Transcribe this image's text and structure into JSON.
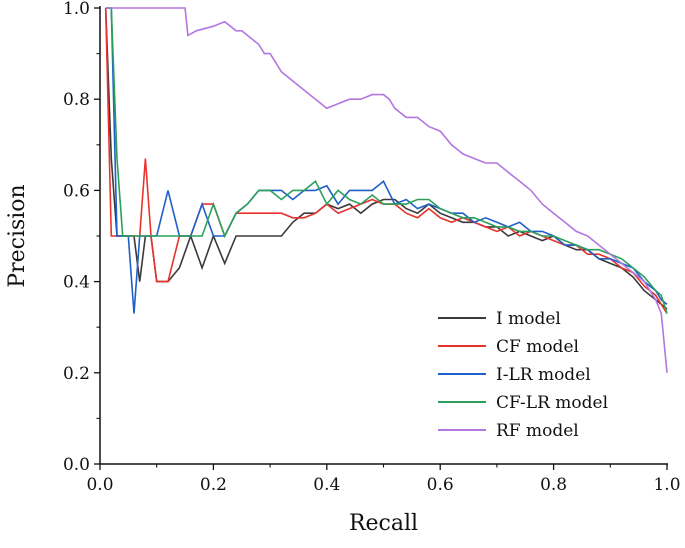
{
  "chart_data": {
    "type": "line",
    "title": "",
    "xlabel": "Recall",
    "ylabel": "Precision",
    "xlim": [
      0.0,
      1.0
    ],
    "ylim": [
      0.0,
      1.0
    ],
    "xticks": [
      "0.0",
      "0.2",
      "0.4",
      "0.6",
      "0.8",
      "1.0"
    ],
    "yticks": [
      "0.0",
      "0.2",
      "0.4",
      "0.6",
      "0.8",
      "1.0"
    ],
    "grid": false,
    "legend_position": "bottom-right",
    "series": [
      {
        "name": "I model",
        "color": "#3a3a3a",
        "x": [
          0.01,
          0.02,
          0.03,
          0.04,
          0.05,
          0.06,
          0.07,
          0.08,
          0.09,
          0.1,
          0.12,
          0.14,
          0.16,
          0.18,
          0.2,
          0.22,
          0.24,
          0.26,
          0.28,
          0.3,
          0.32,
          0.34,
          0.36,
          0.38,
          0.4,
          0.42,
          0.44,
          0.46,
          0.48,
          0.5,
          0.52,
          0.54,
          0.56,
          0.58,
          0.6,
          0.62,
          0.64,
          0.66,
          0.68,
          0.7,
          0.72,
          0.74,
          0.76,
          0.78,
          0.8,
          0.82,
          0.84,
          0.86,
          0.88,
          0.9,
          0.92,
          0.94,
          0.96,
          0.98,
          0.99,
          1.0
        ],
        "y": [
          1.0,
          0.67,
          0.5,
          0.5,
          0.5,
          0.5,
          0.4,
          0.5,
          0.5,
          0.4,
          0.4,
          0.43,
          0.5,
          0.43,
          0.5,
          0.44,
          0.5,
          0.5,
          0.5,
          0.5,
          0.5,
          0.53,
          0.55,
          0.55,
          0.57,
          0.56,
          0.57,
          0.55,
          0.57,
          0.58,
          0.58,
          0.56,
          0.55,
          0.57,
          0.55,
          0.54,
          0.53,
          0.53,
          0.52,
          0.52,
          0.5,
          0.51,
          0.5,
          0.49,
          0.5,
          0.48,
          0.47,
          0.47,
          0.45,
          0.44,
          0.43,
          0.41,
          0.38,
          0.36,
          0.35,
          0.34
        ]
      },
      {
        "name": "CF model",
        "color": "#e8332c",
        "x": [
          0.01,
          0.02,
          0.03,
          0.04,
          0.05,
          0.06,
          0.07,
          0.08,
          0.09,
          0.1,
          0.12,
          0.14,
          0.16,
          0.18,
          0.2,
          0.22,
          0.24,
          0.26,
          0.28,
          0.3,
          0.32,
          0.34,
          0.36,
          0.38,
          0.4,
          0.42,
          0.44,
          0.46,
          0.48,
          0.5,
          0.52,
          0.54,
          0.56,
          0.58,
          0.6,
          0.62,
          0.64,
          0.66,
          0.68,
          0.7,
          0.72,
          0.74,
          0.76,
          0.78,
          0.8,
          0.82,
          0.84,
          0.86,
          0.88,
          0.9,
          0.92,
          0.94,
          0.96,
          0.98,
          0.99,
          1.0
        ],
        "y": [
          1.0,
          0.5,
          0.5,
          0.5,
          0.5,
          0.5,
          0.5,
          0.67,
          0.5,
          0.4,
          0.4,
          0.5,
          0.5,
          0.57,
          0.57,
          0.5,
          0.55,
          0.55,
          0.55,
          0.55,
          0.55,
          0.54,
          0.54,
          0.55,
          0.57,
          0.55,
          0.56,
          0.57,
          0.58,
          0.57,
          0.57,
          0.55,
          0.54,
          0.56,
          0.54,
          0.53,
          0.54,
          0.53,
          0.52,
          0.51,
          0.52,
          0.5,
          0.51,
          0.5,
          0.49,
          0.48,
          0.48,
          0.46,
          0.46,
          0.45,
          0.43,
          0.42,
          0.39,
          0.37,
          0.35,
          0.33
        ]
      },
      {
        "name": "I-LR model",
        "color": "#1f5fc8",
        "x": [
          0.01,
          0.02,
          0.03,
          0.04,
          0.05,
          0.06,
          0.07,
          0.08,
          0.09,
          0.1,
          0.12,
          0.14,
          0.16,
          0.18,
          0.2,
          0.22,
          0.24,
          0.26,
          0.28,
          0.3,
          0.32,
          0.34,
          0.36,
          0.38,
          0.4,
          0.42,
          0.44,
          0.46,
          0.48,
          0.5,
          0.52,
          0.54,
          0.56,
          0.58,
          0.6,
          0.62,
          0.64,
          0.66,
          0.68,
          0.7,
          0.72,
          0.74,
          0.76,
          0.78,
          0.8,
          0.82,
          0.84,
          0.86,
          0.88,
          0.9,
          0.92,
          0.94,
          0.96,
          0.98,
          0.99,
          1.0
        ],
        "y": [
          1.0,
          1.0,
          0.5,
          0.5,
          0.5,
          0.33,
          0.5,
          0.5,
          0.5,
          0.5,
          0.6,
          0.5,
          0.5,
          0.57,
          0.5,
          0.5,
          0.55,
          0.57,
          0.6,
          0.6,
          0.6,
          0.58,
          0.6,
          0.6,
          0.61,
          0.57,
          0.6,
          0.6,
          0.6,
          0.62,
          0.57,
          0.58,
          0.56,
          0.57,
          0.56,
          0.55,
          0.55,
          0.53,
          0.54,
          0.53,
          0.52,
          0.53,
          0.51,
          0.51,
          0.5,
          0.48,
          0.48,
          0.47,
          0.45,
          0.45,
          0.44,
          0.43,
          0.4,
          0.38,
          0.36,
          0.35
        ]
      },
      {
        "name": "CF-LR model",
        "color": "#2ca05a",
        "x": [
          0.01,
          0.02,
          0.03,
          0.04,
          0.05,
          0.06,
          0.07,
          0.08,
          0.09,
          0.1,
          0.12,
          0.14,
          0.16,
          0.18,
          0.2,
          0.22,
          0.24,
          0.26,
          0.28,
          0.3,
          0.32,
          0.34,
          0.36,
          0.38,
          0.4,
          0.42,
          0.44,
          0.46,
          0.48,
          0.5,
          0.52,
          0.54,
          0.56,
          0.58,
          0.6,
          0.62,
          0.64,
          0.66,
          0.68,
          0.7,
          0.72,
          0.74,
          0.76,
          0.78,
          0.8,
          0.82,
          0.84,
          0.86,
          0.88,
          0.9,
          0.92,
          0.94,
          0.96,
          0.98,
          0.99,
          1.0
        ],
        "y": [
          1.0,
          1.0,
          0.67,
          0.5,
          0.5,
          0.5,
          0.5,
          0.5,
          0.5,
          0.5,
          0.5,
          0.5,
          0.5,
          0.5,
          0.57,
          0.5,
          0.55,
          0.57,
          0.6,
          0.6,
          0.58,
          0.6,
          0.6,
          0.62,
          0.57,
          0.6,
          0.58,
          0.57,
          0.59,
          0.57,
          0.57,
          0.57,
          0.58,
          0.58,
          0.56,
          0.55,
          0.54,
          0.54,
          0.53,
          0.52,
          0.52,
          0.51,
          0.51,
          0.5,
          0.5,
          0.49,
          0.48,
          0.47,
          0.47,
          0.46,
          0.45,
          0.43,
          0.41,
          0.38,
          0.37,
          0.33
        ]
      },
      {
        "name": "RF model",
        "color": "#b377e0",
        "x": [
          0.01,
          0.05,
          0.1,
          0.15,
          0.155,
          0.17,
          0.2,
          0.22,
          0.24,
          0.25,
          0.27,
          0.28,
          0.29,
          0.3,
          0.31,
          0.32,
          0.34,
          0.36,
          0.38,
          0.4,
          0.42,
          0.44,
          0.46,
          0.48,
          0.5,
          0.51,
          0.52,
          0.54,
          0.56,
          0.58,
          0.6,
          0.62,
          0.64,
          0.66,
          0.68,
          0.7,
          0.72,
          0.74,
          0.76,
          0.78,
          0.8,
          0.82,
          0.84,
          0.86,
          0.88,
          0.9,
          0.92,
          0.94,
          0.96,
          0.97,
          0.98,
          0.99,
          1.0
        ],
        "y": [
          1.0,
          1.0,
          1.0,
          1.0,
          0.94,
          0.95,
          0.96,
          0.97,
          0.95,
          0.95,
          0.93,
          0.92,
          0.9,
          0.9,
          0.88,
          0.86,
          0.84,
          0.82,
          0.8,
          0.78,
          0.79,
          0.8,
          0.8,
          0.81,
          0.81,
          0.8,
          0.78,
          0.76,
          0.76,
          0.74,
          0.73,
          0.7,
          0.68,
          0.67,
          0.66,
          0.66,
          0.64,
          0.62,
          0.6,
          0.57,
          0.55,
          0.53,
          0.51,
          0.5,
          0.48,
          0.46,
          0.44,
          0.42,
          0.4,
          0.38,
          0.36,
          0.33,
          0.2
        ]
      }
    ]
  }
}
